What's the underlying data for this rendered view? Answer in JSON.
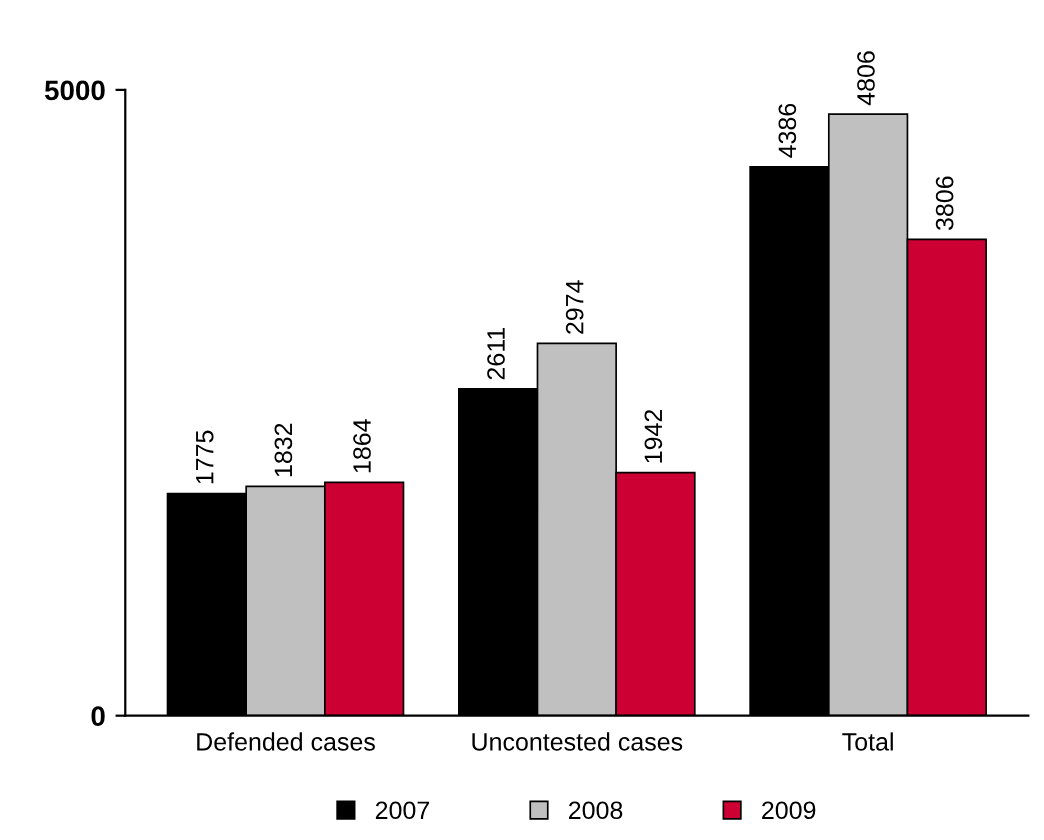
{
  "chart_data": {
    "type": "bar",
    "categories": [
      "Defended cases",
      "Uncontested cases",
      "Total"
    ],
    "series": [
      {
        "name": "2007",
        "color": "#000000",
        "values": [
          1775,
          2611,
          4386
        ]
      },
      {
        "name": "2008",
        "color": "#c0c0c0",
        "values": [
          1832,
          2974,
          4806
        ]
      },
      {
        "name": "2009",
        "color": "#cc0033",
        "values": [
          1864,
          1942,
          3806
        ]
      }
    ],
    "ylim": [
      0,
      5000
    ],
    "yticks": [
      0,
      5000
    ],
    "grid": false,
    "legend": "bottom",
    "data_labels": true
  }
}
